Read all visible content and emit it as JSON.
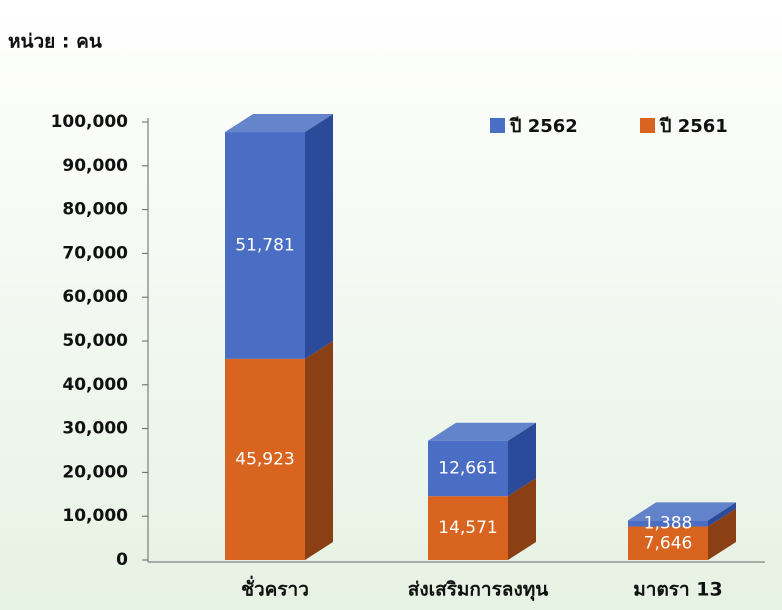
{
  "chart_data": {
    "type": "bar3d_stacked",
    "unit_label": "หน่วย : คน",
    "categories": [
      "ชั่วคราว",
      "ส่งเสริมการลงทุน",
      "มาตรา 13"
    ],
    "series": [
      {
        "name": "ปี 2562",
        "color": "#4a6ec4",
        "side": "#2b4a9a",
        "values": [
          51781,
          12661,
          1388
        ],
        "value_labels": [
          "51,781",
          "12,661",
          "1,388"
        ]
      },
      {
        "name": "ปี 2561",
        "color": "#d8641f",
        "side": "#8a3f14",
        "values": [
          45923,
          14571,
          7646
        ],
        "value_labels": [
          "45,923",
          "14,571",
          "7,646"
        ]
      }
    ],
    "ylim": [
      0,
      100000
    ],
    "yticks": [
      0,
      {
        "value": 10000,
        "label": "10,000"
      },
      {
        "value": 20000,
        "label": "20,000"
      },
      {
        "value": 30000,
        "label": "30,000"
      },
      {
        "value": 40000,
        "label": "40,000"
      },
      {
        "value": 50000,
        "label": "50,000"
      },
      {
        "value": 60000,
        "label": "60,000"
      },
      {
        "value": 70000,
        "label": "70,000"
      },
      {
        "value": 80000,
        "label": "80,000"
      },
      {
        "value": 90000,
        "label": "90,000"
      },
      {
        "value": 100000,
        "label": "100,000"
      }
    ],
    "legend": "top-right"
  }
}
